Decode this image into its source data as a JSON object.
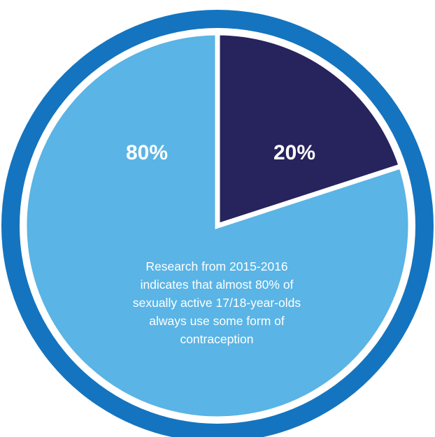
{
  "chart_data": {
    "type": "pie",
    "title": "",
    "slices": [
      {
        "label": "80%",
        "value": 80,
        "color": "#5ab4e5"
      },
      {
        "label": "20%",
        "value": 20,
        "color": "#27235d"
      }
    ],
    "start_angle_deg": 0,
    "direction": "clockwise",
    "ring_color": "#1474bf",
    "separator_color": "#ffffff",
    "annotation_lines": [
      "Research from 2015-2016",
      "indicates that almost 80% of",
      "sexually active 17/18-year-olds",
      "always use some form of",
      "contraception"
    ]
  }
}
